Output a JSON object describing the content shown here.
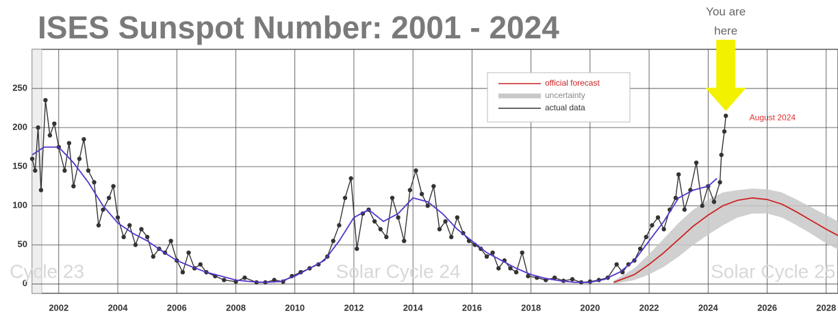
{
  "chart_data": {
    "type": "line",
    "title": "ISES Sunspot Number: 2001 - 2024",
    "xlim": [
      2001.1,
      2028.4
    ],
    "xticks": [
      2002,
      2004,
      2006,
      2008,
      2010,
      2012,
      2014,
      2016,
      2018,
      2020,
      2022,
      2024,
      2026,
      2028
    ],
    "ylim": [
      -12,
      300
    ],
    "yticks": [
      0,
      50,
      100,
      150,
      200,
      250
    ],
    "grid": true,
    "legend": "top-center",
    "series": [
      {
        "name": "actual data",
        "color": "#333333",
        "markers": true,
        "x": [
          2001.1,
          2001.2,
          2001.3,
          2001.4,
          2001.55,
          2001.7,
          2001.85,
          2002.0,
          2002.2,
          2002.35,
          2002.5,
          2002.7,
          2002.85,
          2003.0,
          2003.2,
          2003.35,
          2003.5,
          2003.7,
          2003.85,
          2004.0,
          2004.2,
          2004.4,
          2004.6,
          2004.8,
          2005.0,
          2005.2,
          2005.4,
          2005.6,
          2005.8,
          2006.0,
          2006.2,
          2006.4,
          2006.6,
          2006.8,
          2007.0,
          2007.3,
          2007.6,
          2008.0,
          2008.3,
          2008.7,
          2009.0,
          2009.3,
          2009.6,
          2009.9,
          2010.2,
          2010.5,
          2010.8,
          2011.1,
          2011.3,
          2011.5,
          2011.7,
          2011.9,
          2012.1,
          2012.3,
          2012.5,
          2012.7,
          2012.9,
          2013.1,
          2013.3,
          2013.5,
          2013.7,
          2013.9,
          2014.1,
          2014.3,
          2014.5,
          2014.7,
          2014.9,
          2015.1,
          2015.3,
          2015.5,
          2015.7,
          2015.9,
          2016.1,
          2016.3,
          2016.5,
          2016.7,
          2016.9,
          2017.1,
          2017.3,
          2017.5,
          2017.7,
          2017.9,
          2018.2,
          2018.5,
          2018.8,
          2019.1,
          2019.4,
          2019.7,
          2020.0,
          2020.3,
          2020.6,
          2020.9,
          2021.1,
          2021.3,
          2021.5,
          2021.7,
          2021.9,
          2022.1,
          2022.3,
          2022.5,
          2022.7,
          2022.9,
          2023.0,
          2023.2,
          2023.4,
          2023.6,
          2023.8,
          2024.0,
          2024.2,
          2024.4,
          2024.45,
          2024.55,
          2024.6
        ],
        "values": [
          160,
          145,
          200,
          120,
          235,
          190,
          205,
          175,
          145,
          180,
          125,
          160,
          185,
          145,
          130,
          75,
          95,
          110,
          125,
          85,
          60,
          75,
          50,
          70,
          60,
          35,
          45,
          40,
          55,
          30,
          15,
          40,
          20,
          25,
          15,
          10,
          5,
          3,
          8,
          2,
          2,
          5,
          3,
          10,
          15,
          20,
          25,
          35,
          55,
          75,
          110,
          135,
          45,
          90,
          95,
          80,
          70,
          60,
          110,
          85,
          55,
          120,
          145,
          115,
          100,
          125,
          70,
          80,
          60,
          85,
          65,
          55,
          50,
          45,
          35,
          40,
          20,
          30,
          20,
          15,
          40,
          10,
          8,
          5,
          8,
          4,
          6,
          2,
          3,
          5,
          8,
          25,
          15,
          25,
          30,
          45,
          60,
          75,
          85,
          70,
          95,
          110,
          140,
          95,
          120,
          155,
          100,
          125,
          105,
          130,
          165,
          195,
          215
        ]
      },
      {
        "color": "#5533cc",
        "x": [
          2001.1,
          2001.5,
          2002,
          2002.5,
          2003,
          2003.5,
          2004,
          2004.5,
          2005,
          2005.5,
          2006,
          2006.5,
          2007,
          2007.5,
          2008,
          2008.5,
          2009,
          2009.5,
          2010,
          2010.5,
          2011,
          2011.5,
          2012,
          2012.5,
          2013,
          2013.5,
          2014,
          2014.5,
          2015,
          2015.5,
          2016,
          2016.5,
          2017,
          2017.5,
          2018,
          2018.5,
          2019,
          2019.5,
          2020,
          2020.5,
          2021,
          2021.5,
          2022,
          2022.5,
          2023,
          2023.5,
          2024,
          2024.3
        ],
        "values": [
          165,
          175,
          175,
          155,
          130,
          100,
          78,
          65,
          55,
          42,
          30,
          22,
          15,
          10,
          5,
          3,
          2,
          3,
          10,
          20,
          30,
          55,
          85,
          95,
          80,
          90,
          110,
          105,
          90,
          70,
          55,
          40,
          30,
          20,
          12,
          7,
          4,
          2,
          2,
          6,
          15,
          30,
          55,
          80,
          110,
          120,
          125,
          135
        ]
      },
      {
        "name": "official forecast",
        "color": "#cc2222",
        "x": [
          2020.8,
          2021.5,
          2022,
          2022.5,
          2023,
          2023.5,
          2024,
          2024.5,
          2025,
          2025.5,
          2026,
          2026.5,
          2027,
          2027.5,
          2028,
          2028.4
        ],
        "values": [
          2,
          12,
          25,
          40,
          57,
          74,
          88,
          100,
          107,
          110,
          108,
          102,
          92,
          81,
          70,
          62
        ]
      },
      {
        "name": "uncertainty",
        "color": "#c8c8c8",
        "band": true,
        "x": [
          2020.8,
          2021.5,
          2022,
          2022.5,
          2023,
          2023.5,
          2024,
          2024.5,
          2025,
          2025.5,
          2026,
          2026.5,
          2027,
          2027.5,
          2028,
          2028.4
        ],
        "low": [
          0,
          5,
          12,
          22,
          35,
          50,
          63,
          75,
          85,
          90,
          90,
          85,
          75,
          64,
          52,
          44
        ],
        "high": [
          4,
          20,
          38,
          58,
          78,
          95,
          108,
          117,
          120,
          122,
          121,
          117,
          108,
          98,
          88,
          80
        ]
      }
    ],
    "annotations": [
      {
        "text": "Cycle 23",
        "x": 2001.6
      },
      {
        "text": "Solar Cycle 24",
        "x": 2013.5
      },
      {
        "text": "Solar Cycle 25",
        "x": 2026.2
      },
      {
        "text": "August 2024",
        "x": 2025.4,
        "y": 212
      },
      {
        "text": [
          "You are",
          "here"
        ],
        "x": 2024.6
      }
    ]
  }
}
